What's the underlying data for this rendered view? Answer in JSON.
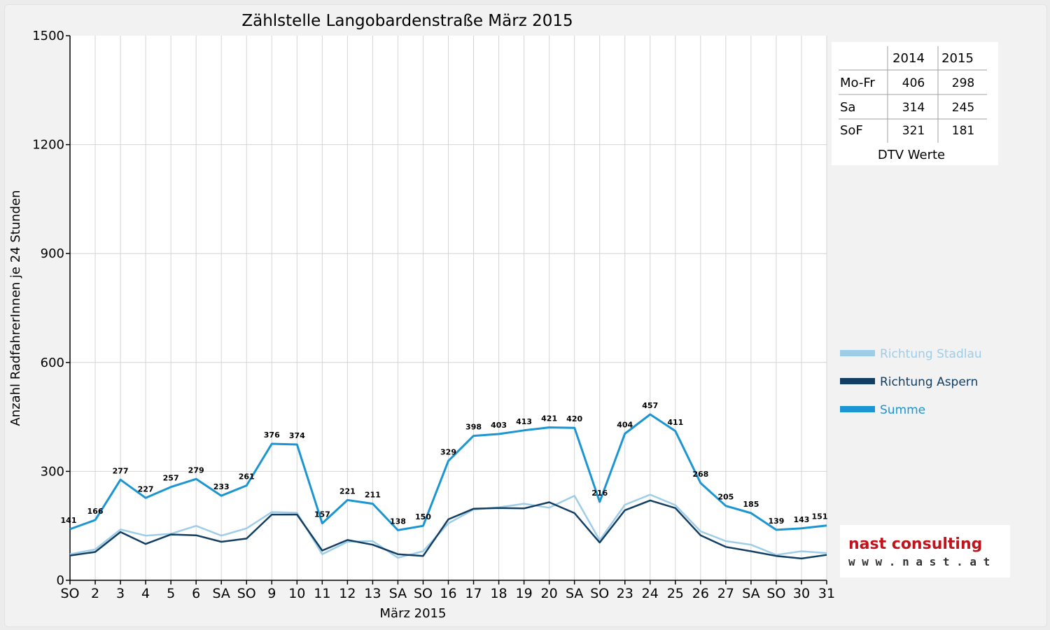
{
  "chart_data": {
    "type": "line",
    "title": "Zählstelle Langobardenstraße März 2015",
    "xlabel": "März 2015",
    "ylabel": "Anzahl RadfahrerInnen je 24 Stunden",
    "ylim": [
      0,
      1500
    ],
    "yticks": [
      "0",
      "300",
      "600",
      "900",
      "1200",
      "1500"
    ],
    "grid": true,
    "categories": [
      "SO",
      "2",
      "3",
      "4",
      "5",
      "6",
      "SA",
      "SO",
      "9",
      "10",
      "11",
      "12",
      "13",
      "SA",
      "SO",
      "16",
      "17",
      "18",
      "19",
      "20",
      "SA",
      "SO",
      "23",
      "24",
      "25",
      "26",
      "27",
      "SA",
      "SO",
      "30",
      "31"
    ],
    "weekend_color": "#e00000",
    "series": [
      {
        "name": "Richtung Stadlau",
        "color": "#9ecde8",
        "values": [
          72,
          85,
          140,
          123,
          128,
          150,
          123,
          143,
          188,
          186,
          72,
          106,
          108,
          62,
          80,
          157,
          195,
          201,
          211,
          200,
          233,
          110,
          208,
          236,
          207,
          135,
          108,
          98,
          70,
          80,
          75
        ]
      },
      {
        "name": "Richtung Aspern",
        "color": "#123e63",
        "values": [
          68,
          78,
          133,
          100,
          126,
          124,
          106,
          115,
          181,
          181,
          82,
          111,
          98,
          72,
          67,
          168,
          197,
          199,
          198,
          215,
          185,
          104,
          193,
          220,
          199,
          124,
          92,
          80,
          67,
          60,
          70
        ]
      },
      {
        "name": "Summe",
        "color": "#1c95d3",
        "values": [
          141,
          166,
          277,
          227,
          257,
          279,
          233,
          261,
          376,
          374,
          157,
          221,
          211,
          138,
          150,
          329,
          398,
          403,
          413,
          421,
          420,
          216,
          404,
          457,
          411,
          268,
          205,
          185,
          139,
          143,
          151
        ]
      }
    ],
    "data_labels": [
      "141",
      "166",
      "277",
      "227",
      "257",
      "279",
      "233",
      "261",
      "376",
      "374",
      "157",
      "221",
      "211",
      "138",
      "150",
      "329",
      "398",
      "403",
      "413",
      "421",
      "420",
      "216",
      "404",
      "457",
      "411",
      "268",
      "205",
      "185",
      "139",
      "143",
      "151"
    ],
    "legend_position": "right",
    "dtv_table": {
      "caption": "DTV Werte",
      "columns": [
        "2014",
        "2015"
      ],
      "rows": [
        {
          "label": "Mo-Fr",
          "values": [
            "406",
            "298"
          ]
        },
        {
          "label": "Sa",
          "values": [
            "314",
            "245"
          ]
        },
        {
          "label": "SoF",
          "values": [
            "321",
            "181"
          ]
        }
      ]
    }
  },
  "logo": {
    "name": "nast consulting",
    "url": "w w w . n a s t . a t"
  }
}
